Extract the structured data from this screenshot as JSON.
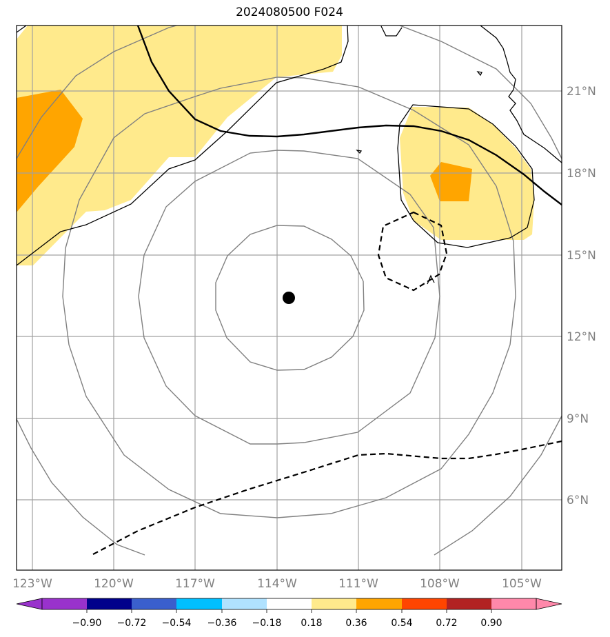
{
  "title": "2024080500 F024",
  "map": {
    "lon_labels": [
      "123°W",
      "120°W",
      "117°W",
      "114°W",
      "111°W",
      "108°W",
      "105°W"
    ],
    "lat_labels": [
      "21°N",
      "18°N",
      "15°N",
      "12°N",
      "9°N",
      "6°N"
    ],
    "storm_center": {
      "lon": -113.6,
      "lat": 13.4
    },
    "colors": {
      "land_fill": "#ffffff",
      "yellow": "#ffea8c",
      "orange": "#ffa500",
      "grid": "#a0a0a0",
      "rings": "#808080"
    }
  },
  "colorbar": {
    "levels": [
      "−0.90",
      "−0.72",
      "−0.54",
      "−0.36",
      "−0.18",
      "0.18",
      "0.36",
      "0.54",
      "0.72",
      "0.90"
    ],
    "colors": [
      "#9932cc",
      "#00008b",
      "#3a5fcd",
      "#00bfff",
      "#b0e2ff",
      "#ffffff",
      "#ffea8c",
      "#ffa500",
      "#ff4500",
      "#b22222",
      "#ff88aa"
    ]
  }
}
